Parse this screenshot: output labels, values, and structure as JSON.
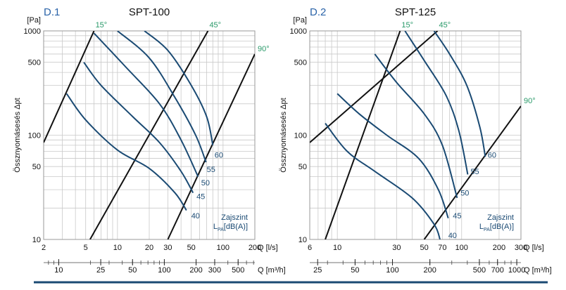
{
  "colors": {
    "grid": "#c9c9c9",
    "system_line": "#111111",
    "curve": "#1a4a73",
    "angle_label": "#2a9a6a",
    "panel_code": "#2a63a8",
    "bottom_rule": "#1a4a73"
  },
  "chart_data": [
    {
      "type": "line",
      "panel_code": "D.1",
      "title": "SPT-100",
      "xlabel": "Q [l/s]",
      "ylabel": "Össznyomásesés Δpt",
      "y_unit": "[Pa]",
      "x2label": "Q [m³/h]",
      "xscale": "log",
      "yscale": "log",
      "xlim": [
        2,
        200
      ],
      "ylim": [
        10,
        1000
      ],
      "xticks": [
        2,
        5,
        10,
        20,
        30,
        50,
        100,
        200
      ],
      "yticks": [
        10,
        50,
        100,
        500,
        1000
      ],
      "x2ticks": [
        10,
        25,
        50,
        100,
        200,
        300,
        500
      ],
      "noise_label": [
        "Zajszint",
        "L",
        "PA",
        "[dB(A)]"
      ],
      "damper_lines": [
        {
          "name": "15°",
          "label_at": [
            6.0,
            1000
          ],
          "points": [
            [
              2,
              85
            ],
            [
              6.0,
              1000
            ]
          ]
        },
        {
          "name": "45°",
          "label_at": [
            72,
            1000
          ],
          "points": [
            [
              5.5,
              10
            ],
            [
              72,
              1000
            ]
          ]
        },
        {
          "name": "90°",
          "label_at": [
            200,
            600
          ],
          "points": [
            [
              30,
              10
            ],
            [
              200,
              600
            ]
          ]
        }
      ],
      "noise_curves": [
        {
          "name": "40",
          "label_at": [
            50,
            17
          ],
          "points": [
            [
              3.3,
              250
            ],
            [
              5,
              140
            ],
            [
              10,
              72
            ],
            [
              20,
              48
            ],
            [
              35,
              28
            ],
            [
              45,
              19
            ]
          ]
        },
        {
          "name": "45",
          "label_at": [
            56,
            26
          ],
          "points": [
            [
              4.8,
              500
            ],
            [
              7,
              300
            ],
            [
              14,
              150
            ],
            [
              25,
              85
            ],
            [
              40,
              45
            ],
            [
              52,
              28
            ]
          ]
        },
        {
          "name": "50",
          "label_at": [
            62,
            35
          ],
          "points": [
            [
              6.0,
              950
            ],
            [
              12,
              450
            ],
            [
              25,
              200
            ],
            [
              40,
              90
            ],
            [
              58,
              40
            ]
          ]
        },
        {
          "name": "55",
          "label_at": [
            70,
            47
          ],
          "points": [
            [
              10,
              1000
            ],
            [
              20,
              550
            ],
            [
              35,
              230
            ],
            [
              55,
              100
            ],
            [
              69,
              55
            ]
          ]
        },
        {
          "name": "60",
          "label_at": [
            83,
            65
          ],
          "points": [
            [
              18,
              1000
            ],
            [
              30,
              650
            ],
            [
              50,
              300
            ],
            [
              70,
              150
            ],
            [
              80,
              80
            ]
          ]
        }
      ]
    },
    {
      "type": "line",
      "panel_code": "D.2",
      "title": "SPT-125",
      "xlabel": "Q [l/s]",
      "ylabel": "Össznyomásesés Δpt",
      "y_unit": "[Pa]",
      "x2label": "Q [m³/h]",
      "xscale": "log",
      "yscale": "log",
      "xlim": [
        6,
        300
      ],
      "ylim": [
        10,
        1000
      ],
      "xticks": [
        6,
        10,
        30,
        50,
        70,
        100,
        200,
        300
      ],
      "yticks": [
        10,
        50,
        100,
        500,
        1000
      ],
      "x2ticks": [
        25,
        50,
        100,
        200,
        500,
        700,
        1000
      ],
      "noise_label": [
        "Zajszint",
        "L",
        "PA",
        "[dB(A)]"
      ],
      "damper_lines": [
        {
          "name": "15°",
          "label_at": [
            32,
            1000
          ],
          "points": [
            [
              8,
              10
            ],
            [
              32,
              1000
            ]
          ]
        },
        {
          "name": "45°",
          "label_at": [
            64,
            1000
          ],
          "points": [
            [
              6,
              85
            ],
            [
              64,
              1000
            ]
          ]
        },
        {
          "name": "90°",
          "label_at": [
            300,
            190
          ],
          "points": [
            [
              50,
              10
            ],
            [
              300,
              190
            ]
          ]
        }
      ],
      "noise_curves": [
        {
          "name": "40",
          "label_at": [
            78,
            11
          ],
          "points": [
            [
              8,
              130
            ],
            [
              12,
              70
            ],
            [
              20,
              45
            ],
            [
              40,
              25
            ],
            [
              60,
              14
            ],
            [
              67,
              10
            ]
          ]
        },
        {
          "name": "45",
          "label_at": [
            85,
            17
          ],
          "points": [
            [
              10,
              250
            ],
            [
              15,
              160
            ],
            [
              25,
              100
            ],
            [
              45,
              60
            ],
            [
              65,
              30
            ],
            [
              78,
              16
            ]
          ]
        },
        {
          "name": "50",
          "label_at": [
            98,
            28
          ],
          "points": [
            [
              20,
              600
            ],
            [
              30,
              320
            ],
            [
              50,
              160
            ],
            [
              70,
              80
            ],
            [
              92,
              25
            ]
          ]
        },
        {
          "name": "55",
          "label_at": [
            118,
            45
          ],
          "points": [
            [
              35,
              1000
            ],
            [
              50,
              520
            ],
            [
              75,
              240
            ],
            [
              95,
              110
            ],
            [
              112,
              42
            ]
          ]
        },
        {
          "name": "60",
          "label_at": [
            162,
            65
          ],
          "points": [
            [
              60,
              1000
            ],
            [
              80,
              600
            ],
            [
              110,
              300
            ],
            [
              140,
              120
            ],
            [
              155,
              62
            ]
          ]
        }
      ]
    }
  ]
}
